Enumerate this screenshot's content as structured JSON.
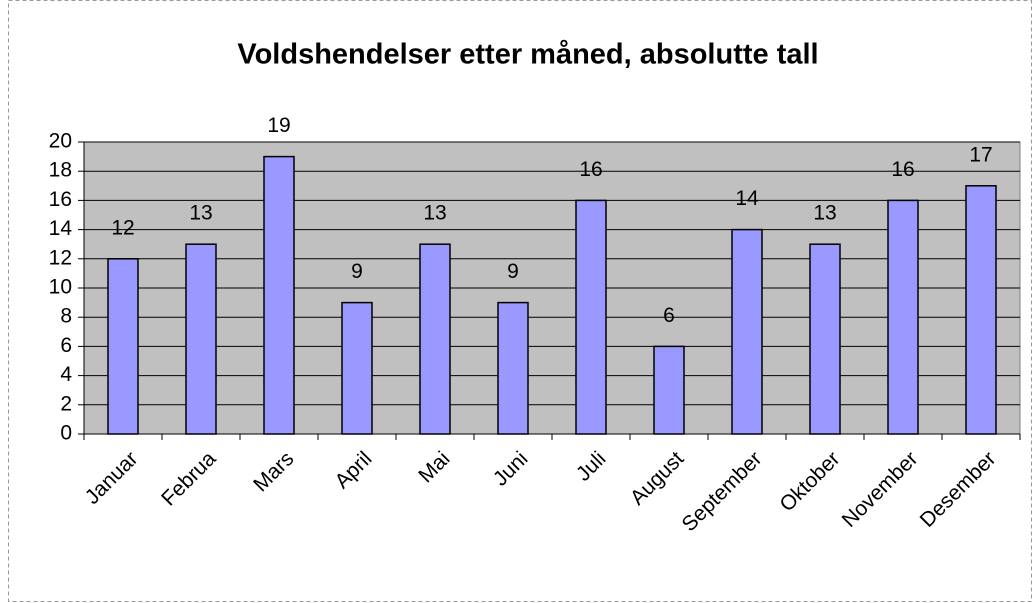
{
  "chart_data": {
    "type": "bar",
    "title": "Voldshendelser etter måned, absolutte tall",
    "categories": [
      "Januar",
      "Februa",
      "Mars",
      "April",
      "Mai",
      "Juni",
      "Juli",
      "August",
      "September",
      "Oktober",
      "November",
      "Desember"
    ],
    "values": [
      12,
      13,
      19,
      9,
      13,
      9,
      16,
      6,
      14,
      13,
      16,
      17
    ],
    "color": "#9999ff",
    "plot_background": "#c0c0c0",
    "ylim": [
      0,
      20
    ],
    "yticks": [
      0,
      2,
      4,
      6,
      8,
      10,
      12,
      14,
      16,
      18,
      20
    ],
    "grid": true
  }
}
